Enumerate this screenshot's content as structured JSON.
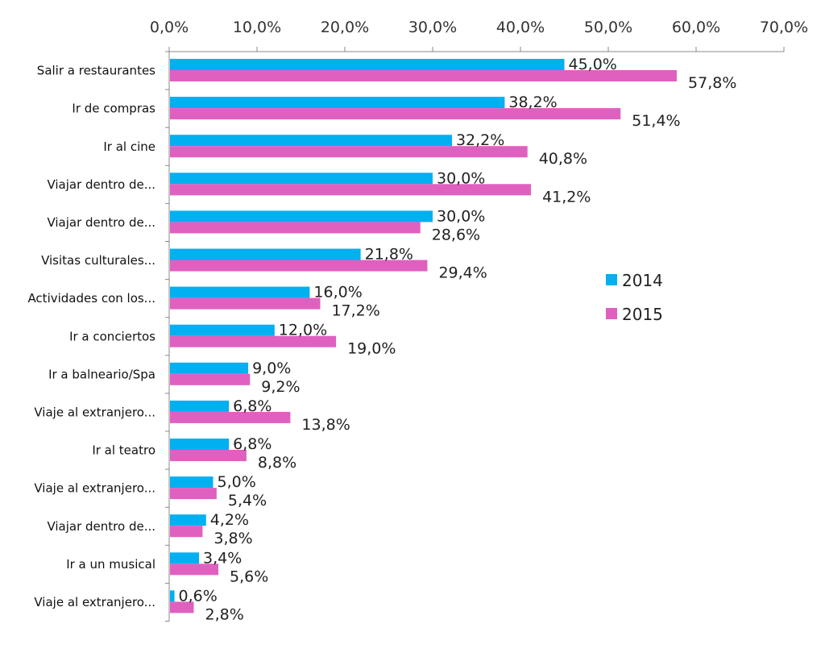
{
  "chart_data": {
    "type": "bar",
    "orientation": "horizontal",
    "title": "",
    "xlabel": "",
    "ylabel": "",
    "xlim": [
      0,
      70
    ],
    "x_ticks": [
      "0,0%",
      "10,0%",
      "20,0%",
      "30,0%",
      "40,0%",
      "50,0%",
      "60,0%",
      "70,0%"
    ],
    "x_axis_position": "top",
    "grid": false,
    "legend_position": "right",
    "categories": [
      "Salir a restaurantes",
      "Ir de compras",
      "Ir al cine",
      "Viajar dentro de...",
      "Viajar dentro de...",
      "Visitas culturales...",
      "Actividades con los...",
      "Ir a conciertos",
      "Ir a balneario/Spa",
      "Viaje al extranjero...",
      "Ir al teatro",
      "Viaje al extranjero...",
      "Viajar dentro de...",
      "Ir a un musical",
      "Viaje al extranjero..."
    ],
    "series": [
      {
        "name": "2014",
        "color": "#00b0f0",
        "values": [
          45.0,
          38.2,
          32.2,
          30.0,
          30.0,
          21.8,
          16.0,
          12.0,
          9.0,
          6.8,
          6.8,
          5.0,
          4.2,
          3.4,
          0.6
        ],
        "labels": [
          "45,0%",
          "38,2%",
          "32,2%",
          "30,0%",
          "30,0%",
          "21,8%",
          "16,0%",
          "12,0%",
          "9,0%",
          "6,8%",
          "6,8%",
          "5,0%",
          "4,2%",
          "3,4%",
          "0,6%"
        ]
      },
      {
        "name": "2015",
        "color": "#e060c0",
        "values": [
          57.8,
          51.4,
          40.8,
          41.2,
          28.6,
          29.4,
          17.2,
          19.0,
          9.2,
          13.8,
          8.8,
          5.4,
          3.8,
          5.6,
          2.8
        ],
        "labels": [
          "57,8%",
          "51,4%",
          "40,8%",
          "41,2%",
          "28,6%",
          "29,4%",
          "17,2%",
          "19,0%",
          "9,2%",
          "13,8%",
          "8,8%",
          "5,4%",
          "3,8%",
          "5,6%",
          "2,8%"
        ]
      }
    ]
  }
}
